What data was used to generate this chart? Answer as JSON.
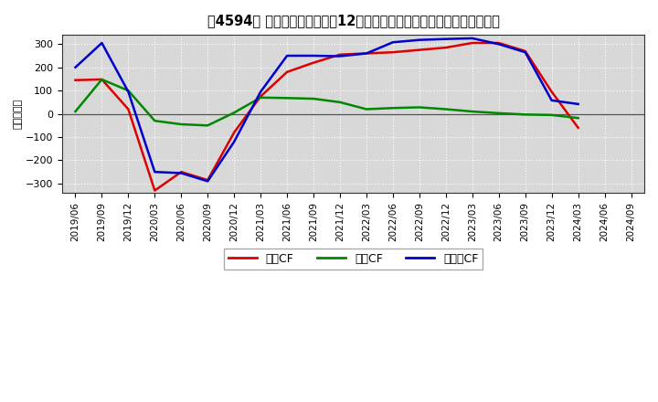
{
  "title": "［4594］ キャッシュフローの12か月移動合計の対前年同期増減額の推移",
  "ylabel": "（百万円）",
  "background_color": "#ffffff",
  "plot_bg_color": "#d8d8d8",
  "grid_color": "#ffffff",
  "ylim": [
    -340,
    340
  ],
  "yticks": [
    -300,
    -200,
    -100,
    0,
    100,
    200,
    300
  ],
  "x_labels": [
    "2019/06",
    "2019/09",
    "2019/12",
    "2020/03",
    "2020/06",
    "2020/09",
    "2020/12",
    "2021/03",
    "2021/06",
    "2021/09",
    "2021/12",
    "2022/03",
    "2022/06",
    "2022/09",
    "2022/12",
    "2023/03",
    "2023/06",
    "2023/09",
    "2023/12",
    "2024/03",
    "2024/06",
    "2024/09"
  ],
  "series": {
    "営業CF": {
      "color": "#dd0000",
      "values": [
        145,
        148,
        20,
        -330,
        -250,
        -285,
        -80,
        75,
        180,
        220,
        255,
        260,
        265,
        275,
        285,
        305,
        305,
        270,
        95,
        -60,
        null,
        null
      ]
    },
    "投資CF": {
      "color": "#008800",
      "values": [
        10,
        148,
        100,
        -30,
        -45,
        -50,
        5,
        70,
        68,
        65,
        50,
        20,
        25,
        28,
        20,
        10,
        3,
        -3,
        -5,
        -18,
        null,
        null
      ]
    },
    "フリーCF": {
      "color": "#0000cc",
      "values": [
        200,
        305,
        95,
        -250,
        -255,
        -290,
        -120,
        95,
        250,
        250,
        248,
        260,
        308,
        318,
        322,
        325,
        300,
        265,
        58,
        42,
        null,
        null
      ]
    }
  },
  "legend": {
    "entries": [
      "営業CF",
      "投資CF",
      "フリーCF"
    ],
    "colors": [
      "#dd0000",
      "#008800",
      "#0000cc"
    ]
  }
}
